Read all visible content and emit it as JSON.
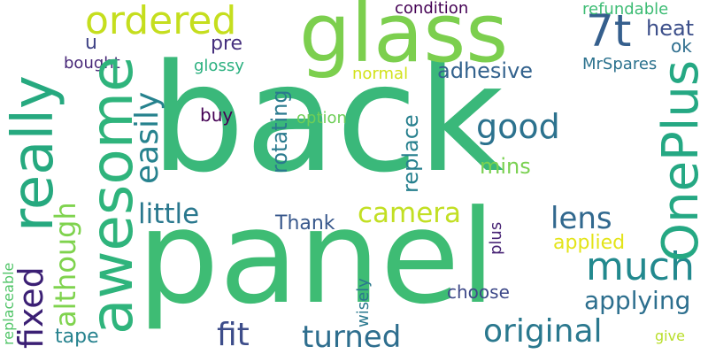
{
  "words": [
    {
      "id": "back",
      "text": "back",
      "color": "#3ab87a"
    },
    {
      "id": "panel",
      "text": "panel",
      "color": "#3ebc74"
    },
    {
      "id": "glass",
      "text": "glass",
      "color": "#7ccf4e"
    },
    {
      "id": "awesome",
      "text": "awesome",
      "color": "#2fb47c"
    },
    {
      "id": "really",
      "text": "really",
      "color": "#26a97f"
    },
    {
      "id": "oneplus",
      "text": "OnePlus",
      "color": "#25a883"
    },
    {
      "id": "ordered",
      "text": "ordered",
      "color": "#c5de1e"
    },
    {
      "id": "7t",
      "text": "7t",
      "color": "#355f8d"
    },
    {
      "id": "much",
      "text": "much",
      "color": "#22898e"
    },
    {
      "id": "fit",
      "text": "fit",
      "color": "#3d4d8a"
    },
    {
      "id": "original",
      "text": "original",
      "color": "#2a788e"
    },
    {
      "id": "turned",
      "text": "turned",
      "color": "#2e6e8e"
    },
    {
      "id": "easily",
      "text": "easily",
      "color": "#26828e"
    },
    {
      "id": "good",
      "text": "good",
      "color": "#2c728e"
    },
    {
      "id": "although",
      "text": "although",
      "color": "#7fd34e"
    },
    {
      "id": "fixed",
      "text": "fixed",
      "color": "#3b1f74"
    },
    {
      "id": "camera",
      "text": "camera",
      "color": "#c2df23"
    },
    {
      "id": "little",
      "text": "little",
      "color": "#2a788e"
    },
    {
      "id": "lens",
      "text": "lens",
      "color": "#31688e"
    },
    {
      "id": "applying",
      "text": "applying",
      "color": "#2d6f8e"
    },
    {
      "id": "heat",
      "text": "heat",
      "color": "#3c4f8a"
    },
    {
      "id": "rotating",
      "text": "rotating",
      "color": "#2a7a8e"
    },
    {
      "id": "replace",
      "text": "replace",
      "color": "#27808e"
    },
    {
      "id": "adhesive",
      "text": "adhesive",
      "color": "#33628d"
    },
    {
      "id": "thank",
      "text": "Thank",
      "color": "#38588c"
    },
    {
      "id": "applied",
      "text": "applied",
      "color": "#e3e418"
    },
    {
      "id": "mins",
      "text": "mins",
      "color": "#7ad151"
    },
    {
      "id": "option",
      "text": "option",
      "color": "#6ece58"
    },
    {
      "id": "buy",
      "text": "buy",
      "color": "#440154"
    },
    {
      "id": "pre",
      "text": "pre",
      "color": "#46307e"
    },
    {
      "id": "u",
      "text": "u",
      "color": "#414487"
    },
    {
      "id": "bought",
      "text": "bought",
      "color": "#482878"
    },
    {
      "id": "glossy",
      "text": "glossy",
      "color": "#2ab07f"
    },
    {
      "id": "normal",
      "text": "normal",
      "color": "#d2e21b"
    },
    {
      "id": "condition",
      "text": "condition",
      "color": "#440154"
    },
    {
      "id": "refundable",
      "text": "refundable",
      "color": "#3dbc74"
    },
    {
      "id": "ok",
      "text": "ok",
      "color": "#2e6e8e"
    },
    {
      "id": "mrspares",
      "text": "MrSpares",
      "color": "#2c728e"
    },
    {
      "id": "tape",
      "text": "tape",
      "color": "#26828e"
    },
    {
      "id": "choose",
      "text": "choose",
      "color": "#3e4989"
    },
    {
      "id": "wisely",
      "text": "wisely",
      "color": "#2a788e"
    },
    {
      "id": "plus",
      "text": "plus",
      "color": "#482475"
    },
    {
      "id": "replaceable",
      "text": "replaceable",
      "color": "#52c569"
    },
    {
      "id": "give",
      "text": "give",
      "color": "#b8de29"
    }
  ]
}
